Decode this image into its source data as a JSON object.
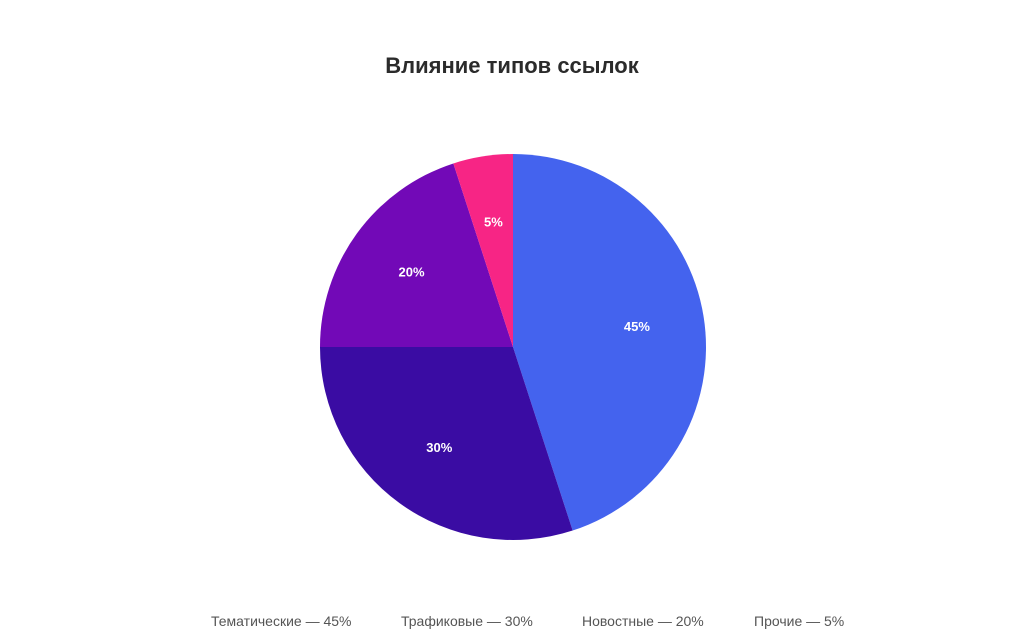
{
  "chart_data": {
    "type": "pie",
    "title": "Влияние типов ссылок",
    "categories": [
      "Тематические",
      "Трафиковые",
      "Новостные",
      "Прочие"
    ],
    "values": [
      45,
      30,
      20,
      5
    ],
    "slice_labels": [
      "45%",
      "30%",
      "20%",
      "5%"
    ],
    "colors": [
      "#4463ee",
      "#3a0ca3",
      "#7209b7",
      "#f72585"
    ],
    "start_angle": "12 o'clock",
    "direction": "clockwise",
    "legend": {
      "position": "bottom",
      "items": [
        "Тематические — 45%",
        "Трафиковые — 30%",
        "Новостные — 20%",
        "Прочие — 5%"
      ]
    }
  }
}
